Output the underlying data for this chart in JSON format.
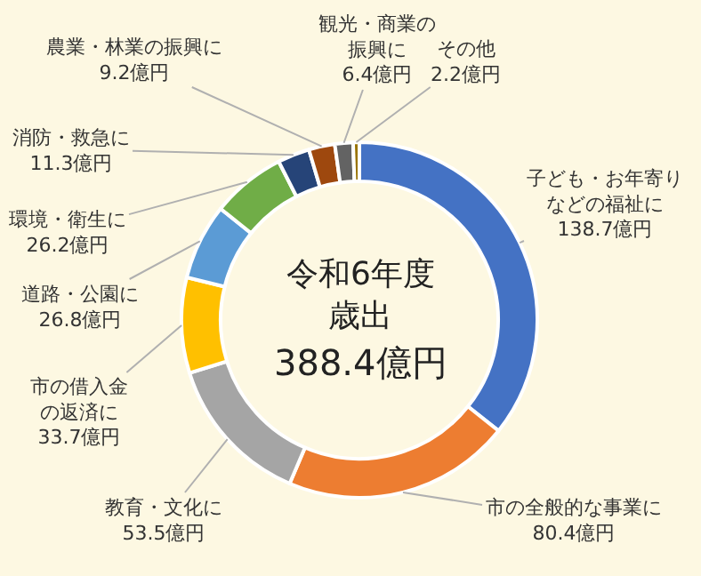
{
  "chart_data": {
    "type": "donut",
    "title": "令和6年度歳出",
    "subtitle": "388.4億円",
    "categories": [
      "子ども・お年寄りなどの福祉に",
      "市の全般的な事業に",
      "教育・文化に",
      "市の借入金の返済に",
      "道路・公園に",
      "環境・衛生に",
      "消防・救急に",
      "農業・林業の振興に",
      "観光・商業の振興に",
      "その他"
    ],
    "values": [
      138.7,
      80.4,
      53.5,
      33.7,
      26.8,
      26.2,
      11.3,
      9.2,
      6.4,
      2.2
    ],
    "colors": [
      "#4472c4",
      "#ed7d31",
      "#a5a5a5",
      "#ffc000",
      "#5b9bd5",
      "#70ad47",
      "#264478",
      "#9e480e",
      "#636363",
      "#997300"
    ],
    "value_labels": [
      "138.7億円",
      "80.4億円",
      "53.5億円",
      "33.7億円",
      "26.8億円",
      "26.2億円",
      "11.3億円",
      "9.2億円",
      "6.4億円",
      "2.2億円"
    ],
    "legend": false
  }
}
